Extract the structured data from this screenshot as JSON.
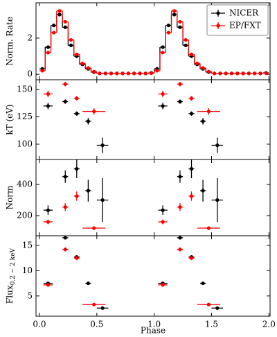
{
  "chart_data": [
    {
      "type": "step",
      "ylabel": "Norm. Rate",
      "ylim": [
        -0.3,
        3.95
      ],
      "yticks": [
        0,
        2
      ],
      "legend": "upper right",
      "x": [
        0.025,
        0.075,
        0.125,
        0.175,
        0.225,
        0.275,
        0.325,
        0.375,
        0.425,
        0.475,
        0.525,
        0.575,
        0.625,
        0.675,
        0.725,
        0.775,
        0.825,
        0.875,
        0.925,
        0.975,
        1.025,
        1.075,
        1.125,
        1.175,
        1.225,
        1.275,
        1.325,
        1.375,
        1.425,
        1.475,
        1.525,
        1.575,
        1.625,
        1.675,
        1.725,
        1.775,
        1.825,
        1.875,
        1.925,
        1.975
      ],
      "series": [
        {
          "name": "NICER",
          "color": "#000000",
          "values": [
            0.3,
            1.5,
            2.7,
            3.3,
            2.6,
            1.6,
            1.0,
            0.55,
            0.3,
            0.12,
            0.05,
            0.05,
            0.05,
            0.05,
            0.05,
            0.05,
            0.05,
            0.05,
            0.05,
            0.08,
            0.3,
            1.5,
            2.7,
            3.3,
            2.6,
            1.6,
            1.0,
            0.55,
            0.3,
            0.12,
            0.05,
            0.05,
            0.05,
            0.05,
            0.05,
            0.05,
            0.05,
            0.05,
            0.05,
            0.08
          ]
        },
        {
          "name": "EP/FXT",
          "color": "#ff0000",
          "values": [
            0.2,
            1.2,
            2.3,
            3.5,
            2.9,
            1.9,
            1.1,
            0.6,
            0.35,
            0.15,
            0.05,
            0.05,
            0.05,
            0.05,
            0.05,
            0.05,
            0.05,
            0.05,
            0.05,
            0.06,
            0.2,
            1.2,
            2.3,
            3.5,
            2.9,
            1.9,
            1.1,
            0.6,
            0.35,
            0.15,
            0.05,
            0.05,
            0.05,
            0.05,
            0.05,
            0.05,
            0.05,
            0.05,
            0.05,
            0.06
          ]
        }
      ]
    },
    {
      "type": "errorbar",
      "ylabel": "kT (eV)",
      "ylim": [
        86,
        159
      ],
      "yticks": [
        100,
        125,
        150
      ],
      "series": [
        {
          "color": "#000000",
          "x": [
            0.075,
            0.225,
            0.325,
            0.425,
            0.55,
            1.075,
            1.225,
            1.325,
            1.425,
            1.55
          ],
          "xerr": [
            0.04,
            0.025,
            0.025,
            0.025,
            0.05,
            0.04,
            0.025,
            0.025,
            0.025,
            0.05
          ],
          "values": [
            135,
            139,
            128,
            121,
            99,
            135,
            139,
            128,
            121,
            99
          ],
          "yerr": [
            3,
            2,
            2,
            3,
            7,
            3,
            2,
            2,
            3,
            7
          ]
        },
        {
          "color": "#ff0000",
          "x": [
            0.075,
            0.225,
            0.325,
            0.475,
            1.075,
            1.225,
            1.325,
            1.475
          ],
          "xerr": [
            0.04,
            0.025,
            0.025,
            0.1,
            0.04,
            0.025,
            0.025,
            0.1
          ],
          "values": [
            146,
            155,
            142,
            130,
            146,
            155,
            142,
            130
          ],
          "yerr": [
            3,
            2,
            2,
            3,
            3,
            2,
            2,
            3
          ]
        }
      ]
    },
    {
      "type": "errorbar",
      "ylabel": "Norm",
      "ylim": [
        71,
        560
      ],
      "yticks": [
        200,
        400
      ],
      "series": [
        {
          "color": "#000000",
          "x": [
            0.075,
            0.225,
            0.325,
            0.425,
            0.55,
            1.075,
            1.225,
            1.325,
            1.425,
            1.55
          ],
          "xerr": [
            0.04,
            0.025,
            0.025,
            0.025,
            0.05,
            0.04,
            0.025,
            0.025,
            0.025,
            0.05
          ],
          "values": [
            235,
            450,
            500,
            360,
            300,
            235,
            450,
            500,
            360,
            300
          ],
          "yerr": [
            30,
            40,
            60,
            70,
            140,
            30,
            40,
            60,
            70,
            140
          ]
        },
        {
          "color": "#ff0000",
          "x": [
            0.075,
            0.225,
            0.325,
            0.475,
            1.075,
            1.225,
            1.325,
            1.475
          ],
          "xerr": [
            0.04,
            0.025,
            0.025,
            0.1,
            0.04,
            0.025,
            0.025,
            0.1
          ],
          "values": [
            160,
            255,
            325,
            120,
            160,
            255,
            325,
            120
          ],
          "yerr": [
            15,
            25,
            30,
            8,
            15,
            25,
            30,
            8
          ]
        }
      ]
    },
    {
      "type": "errorbar",
      "ylabel": "Flux",
      "ylabel_sub": "0.2 − 2 keV",
      "ylim": [
        1,
        16.9
      ],
      "yticks": [
        5,
        10,
        15
      ],
      "xlabel": "Phase",
      "xlim": [
        -0.03,
        2.01
      ],
      "xticks": [
        {
          "value": 0,
          "label": "0.0"
        },
        {
          "value": 0.5,
          "label": "0.5"
        },
        {
          "value": 1,
          "label": "1.0"
        },
        {
          "value": 1.5,
          "label": "1.5"
        },
        {
          "value": 2,
          "label": "2.0"
        }
      ],
      "series": [
        {
          "color": "#000000",
          "x": [
            0.075,
            0.225,
            0.325,
            0.425,
            0.55,
            1.075,
            1.225,
            1.325,
            1.425,
            1.55
          ],
          "xerr": [
            0.04,
            0.025,
            0.025,
            0.025,
            0.05,
            0.04,
            0.025,
            0.025,
            0.025,
            0.05
          ],
          "values": [
            7.5,
            16.5,
            12.7,
            7.5,
            2.6,
            7.5,
            16.5,
            12.7,
            7.5,
            2.6
          ],
          "yerr": [
            0.3,
            0.3,
            0.3,
            0.2,
            0.2,
            0.3,
            0.3,
            0.3,
            0.2,
            0.2
          ]
        },
        {
          "color": "#ff0000",
          "x": [
            0.075,
            0.225,
            0.325,
            0.475,
            1.075,
            1.225,
            1.325,
            1.475
          ],
          "xerr": [
            0.04,
            0.025,
            0.025,
            0.1,
            0.04,
            0.025,
            0.025,
            0.1
          ],
          "values": [
            7.2,
            14.2,
            12.5,
            3.3,
            7.2,
            14.2,
            12.5,
            3.3
          ],
          "yerr": [
            0.4,
            0.4,
            0.4,
            0.2,
            0.4,
            0.4,
            0.4,
            0.2
          ]
        }
      ]
    }
  ]
}
